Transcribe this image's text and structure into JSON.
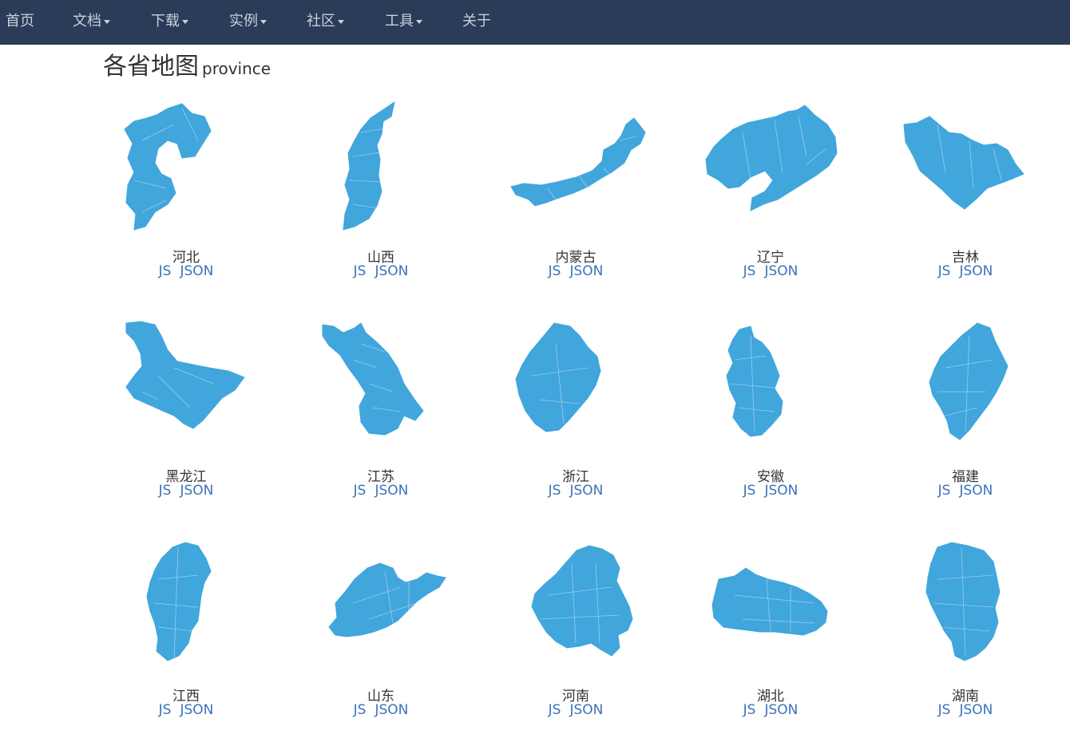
{
  "nav": {
    "background": "#2a3c57",
    "items": [
      {
        "label": "首页",
        "dropdown": false
      },
      {
        "label": "文档",
        "dropdown": true
      },
      {
        "label": "下载",
        "dropdown": true
      },
      {
        "label": "实例",
        "dropdown": true
      },
      {
        "label": "社区",
        "dropdown": true
      },
      {
        "label": "工具",
        "dropdown": true
      },
      {
        "label": "关于",
        "dropdown": false
      }
    ]
  },
  "title": {
    "main": "各省地图",
    "sub": "province"
  },
  "map_color": "#41a6dc",
  "provinces": [
    {
      "name": "河北",
      "js": "JS",
      "json": "JSON"
    },
    {
      "name": "山西",
      "js": "JS",
      "json": "JSON"
    },
    {
      "name": "内蒙古",
      "js": "JS",
      "json": "JSON"
    },
    {
      "name": "辽宁",
      "js": "JS",
      "json": "JSON"
    },
    {
      "name": "吉林",
      "js": "JS",
      "json": "JSON"
    },
    {
      "name": "黑龙江",
      "js": "JS",
      "json": "JSON"
    },
    {
      "name": "江苏",
      "js": "JS",
      "json": "JSON"
    },
    {
      "name": "浙江",
      "js": "JS",
      "json": "JSON"
    },
    {
      "name": "安徽",
      "js": "JS",
      "json": "JSON"
    },
    {
      "name": "福建",
      "js": "JS",
      "json": "JSON"
    },
    {
      "name": "江西",
      "js": "JS",
      "json": "JSON"
    },
    {
      "name": "山东",
      "js": "JS",
      "json": "JSON"
    },
    {
      "name": "河南",
      "js": "JS",
      "json": "JSON"
    },
    {
      "name": "湖北",
      "js": "JS",
      "json": "JSON"
    },
    {
      "name": "湖南",
      "js": "JS",
      "json": "JSON"
    }
  ]
}
